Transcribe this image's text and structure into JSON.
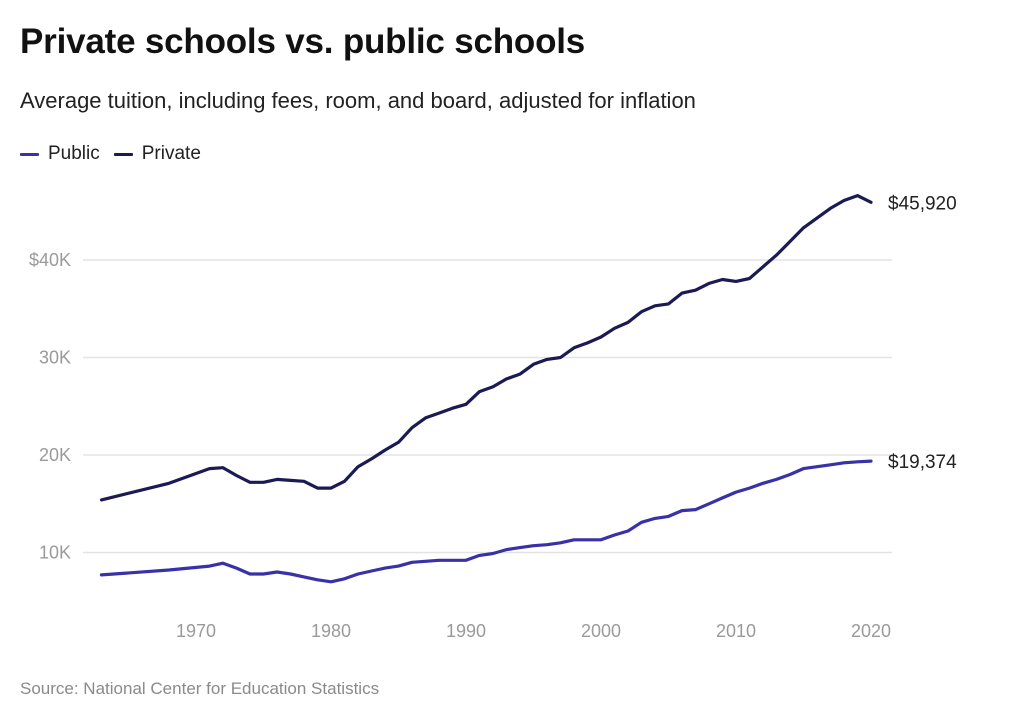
{
  "header": {
    "title": "Private schools vs. public schools",
    "subtitle": "Average tuition, including fees, room, and board, adjusted for inflation"
  },
  "footer": {
    "source": "Source: National Center for Education Statistics"
  },
  "chart_data": {
    "type": "line",
    "title": "Private schools vs. public schools",
    "subtitle": "Average tuition, including fees, room, and board, adjusted for inflation",
    "xlabel": "",
    "ylabel": "",
    "xlim": [
      1963,
      2020
    ],
    "ylim": [
      0,
      47000
    ],
    "grid": true,
    "legend_position": "top-left",
    "x_ticks": [
      1970,
      1980,
      1990,
      2000,
      2010,
      2020
    ],
    "x_tick_labels": [
      "1970",
      "1980",
      "1990",
      "2000",
      "2010",
      "2020"
    ],
    "y_ticks": [
      10000,
      20000,
      30000,
      40000
    ],
    "y_tick_labels": [
      "10K",
      "20K",
      "30K",
      "$40K"
    ],
    "series": [
      {
        "name": "Public",
        "color": "#3a30a8",
        "end_label": "$19,374",
        "points": [
          [
            1963,
            7700
          ],
          [
            1968,
            8200
          ],
          [
            1971,
            8600
          ],
          [
            1972,
            8900
          ],
          [
            1973,
            8400
          ],
          [
            1974,
            7800
          ],
          [
            1975,
            7800
          ],
          [
            1976,
            8000
          ],
          [
            1977,
            7800
          ],
          [
            1978,
            7500
          ],
          [
            1979,
            7200
          ],
          [
            1980,
            7000
          ],
          [
            1981,
            7300
          ],
          [
            1982,
            7800
          ],
          [
            1983,
            8100
          ],
          [
            1984,
            8400
          ],
          [
            1985,
            8600
          ],
          [
            1986,
            9000
          ],
          [
            1987,
            9100
          ],
          [
            1988,
            9200
          ],
          [
            1989,
            9200
          ],
          [
            1990,
            9200
          ],
          [
            1991,
            9700
          ],
          [
            1992,
            9900
          ],
          [
            1993,
            10300
          ],
          [
            1994,
            10500
          ],
          [
            1995,
            10700
          ],
          [
            1996,
            10800
          ],
          [
            1997,
            11000
          ],
          [
            1998,
            11300
          ],
          [
            1999,
            11300
          ],
          [
            2000,
            11300
          ],
          [
            2001,
            11800
          ],
          [
            2002,
            12200
          ],
          [
            2003,
            13100
          ],
          [
            2004,
            13500
          ],
          [
            2005,
            13700
          ],
          [
            2006,
            14300
          ],
          [
            2007,
            14400
          ],
          [
            2008,
            15000
          ],
          [
            2009,
            15600
          ],
          [
            2010,
            16200
          ],
          [
            2011,
            16600
          ],
          [
            2012,
            17100
          ],
          [
            2013,
            17500
          ],
          [
            2014,
            18000
          ],
          [
            2015,
            18600
          ],
          [
            2016,
            18800
          ],
          [
            2017,
            19000
          ],
          [
            2018,
            19200
          ],
          [
            2019,
            19300
          ],
          [
            2020,
            19374
          ]
        ]
      },
      {
        "name": "Private",
        "color": "#1b1a54",
        "end_label": "$45,920",
        "points": [
          [
            1963,
            15400
          ],
          [
            1968,
            17100
          ],
          [
            1971,
            18600
          ],
          [
            1972,
            18700
          ],
          [
            1973,
            17900
          ],
          [
            1974,
            17200
          ],
          [
            1975,
            17200
          ],
          [
            1976,
            17500
          ],
          [
            1977,
            17400
          ],
          [
            1978,
            17300
          ],
          [
            1979,
            16600
          ],
          [
            1980,
            16600
          ],
          [
            1981,
            17300
          ],
          [
            1982,
            18800
          ],
          [
            1983,
            19600
          ],
          [
            1984,
            20500
          ],
          [
            1985,
            21300
          ],
          [
            1986,
            22800
          ],
          [
            1987,
            23800
          ],
          [
            1988,
            24300
          ],
          [
            1989,
            24800
          ],
          [
            1990,
            25200
          ],
          [
            1991,
            26500
          ],
          [
            1992,
            27000
          ],
          [
            1993,
            27800
          ],
          [
            1994,
            28300
          ],
          [
            1995,
            29300
          ],
          [
            1996,
            29800
          ],
          [
            1997,
            30000
          ],
          [
            1998,
            31000
          ],
          [
            1999,
            31500
          ],
          [
            2000,
            32100
          ],
          [
            2001,
            33000
          ],
          [
            2002,
            33600
          ],
          [
            2003,
            34700
          ],
          [
            2004,
            35300
          ],
          [
            2005,
            35500
          ],
          [
            2006,
            36600
          ],
          [
            2007,
            36900
          ],
          [
            2008,
            37600
          ],
          [
            2009,
            38000
          ],
          [
            2010,
            37800
          ],
          [
            2011,
            38100
          ],
          [
            2012,
            39300
          ],
          [
            2013,
            40500
          ],
          [
            2014,
            41900
          ],
          [
            2015,
            43300
          ],
          [
            2016,
            44300
          ],
          [
            2017,
            45300
          ],
          [
            2018,
            46100
          ],
          [
            2019,
            46600
          ],
          [
            2020,
            45920
          ]
        ]
      }
    ]
  }
}
